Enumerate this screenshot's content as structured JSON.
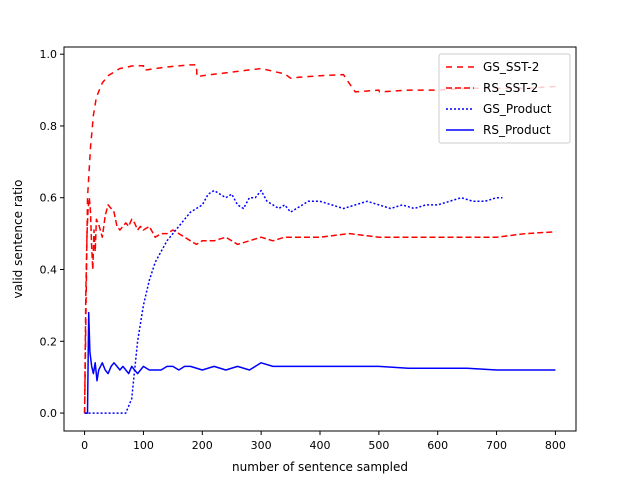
{
  "chart_data": {
    "type": "line",
    "title": "",
    "xlabel": "number of sentence sampled",
    "ylabel": "valid sentence ratio",
    "xlim": [
      -35,
      835
    ],
    "ylim": [
      -0.05,
      1.02
    ],
    "xticks": [
      0,
      100,
      200,
      300,
      400,
      500,
      600,
      700,
      800
    ],
    "xtick_labels": [
      "0",
      "100",
      "200",
      "300",
      "400",
      "500",
      "600",
      "700",
      "800"
    ],
    "yticks": [
      0.0,
      0.2,
      0.4,
      0.6,
      0.8,
      1.0
    ],
    "ytick_labels": [
      "0.0",
      "0.2",
      "0.4",
      "0.6",
      "0.8",
      "1.0"
    ],
    "grid": false,
    "legend_position": "top-right",
    "series": [
      {
        "name": "GS_SST-2",
        "color": "#ff0000",
        "style": "dashdot",
        "x": [
          0,
          5,
          10,
          15,
          20,
          25,
          30,
          40,
          50,
          60,
          70,
          80,
          90,
          100,
          101,
          120,
          150,
          180,
          190,
          191,
          200,
          250,
          300,
          340,
          350,
          360,
          400,
          440,
          450,
          460,
          500,
          501,
          550,
          600,
          650,
          700,
          750,
          800
        ],
        "y": [
          0.0,
          0.6,
          0.74,
          0.83,
          0.88,
          0.9,
          0.92,
          0.94,
          0.95,
          0.96,
          0.963,
          0.967,
          0.968,
          0.968,
          0.955,
          0.96,
          0.966,
          0.97,
          0.97,
          0.937,
          0.94,
          0.95,
          0.96,
          0.945,
          0.933,
          0.935,
          0.94,
          0.943,
          0.918,
          0.895,
          0.9,
          0.895,
          0.9,
          0.9,
          0.905,
          0.905,
          0.905,
          0.91
        ]
      },
      {
        "name": "RS_SST-2",
        "color": "#ff0000",
        "style": "dashed",
        "x": [
          0,
          2,
          4,
          6,
          8,
          10,
          12,
          14,
          16,
          18,
          20,
          25,
          30,
          35,
          40,
          45,
          50,
          55,
          60,
          65,
          70,
          75,
          80,
          85,
          90,
          95,
          100,
          110,
          120,
          130,
          140,
          150,
          160,
          170,
          180,
          190,
          200,
          220,
          240,
          260,
          280,
          300,
          320,
          340,
          360,
          380,
          400,
          450,
          500,
          550,
          600,
          650,
          700,
          750,
          800
        ],
        "y": [
          0.0,
          0.33,
          0.5,
          0.57,
          0.6,
          0.56,
          0.46,
          0.4,
          0.51,
          0.45,
          0.54,
          0.52,
          0.49,
          0.55,
          0.58,
          0.57,
          0.56,
          0.52,
          0.51,
          0.52,
          0.53,
          0.52,
          0.54,
          0.53,
          0.51,
          0.52,
          0.51,
          0.52,
          0.49,
          0.5,
          0.5,
          0.51,
          0.5,
          0.49,
          0.48,
          0.47,
          0.48,
          0.48,
          0.49,
          0.47,
          0.48,
          0.49,
          0.48,
          0.49,
          0.49,
          0.49,
          0.49,
          0.5,
          0.49,
          0.49,
          0.49,
          0.49,
          0.49,
          0.5,
          0.505
        ]
      },
      {
        "name": "GS_Product",
        "color": "#0000ff",
        "style": "dotted",
        "x": [
          0,
          30,
          50,
          70,
          80,
          90,
          100,
          110,
          120,
          140,
          160,
          180,
          200,
          210,
          220,
          230,
          240,
          250,
          260,
          270,
          280,
          290,
          300,
          310,
          320,
          330,
          340,
          350,
          360,
          380,
          400,
          420,
          440,
          460,
          480,
          500,
          520,
          540,
          560,
          580,
          600,
          620,
          640,
          660,
          680,
          700,
          710
        ],
        "y": [
          0.0,
          0.0,
          0.0,
          0.0,
          0.04,
          0.2,
          0.3,
          0.37,
          0.42,
          0.48,
          0.52,
          0.56,
          0.58,
          0.61,
          0.62,
          0.61,
          0.6,
          0.61,
          0.58,
          0.57,
          0.6,
          0.6,
          0.62,
          0.59,
          0.58,
          0.57,
          0.58,
          0.56,
          0.57,
          0.59,
          0.59,
          0.58,
          0.57,
          0.58,
          0.59,
          0.58,
          0.57,
          0.58,
          0.57,
          0.58,
          0.58,
          0.59,
          0.6,
          0.59,
          0.59,
          0.6,
          0.6
        ]
      },
      {
        "name": "RS_Product",
        "color": "#0000ff",
        "style": "solid",
        "x": [
          0,
          5,
          7,
          9,
          12,
          15,
          18,
          21,
          24,
          27,
          30,
          35,
          40,
          45,
          50,
          55,
          60,
          65,
          70,
          75,
          80,
          85,
          90,
          95,
          100,
          110,
          120,
          130,
          140,
          150,
          160,
          170,
          180,
          200,
          220,
          240,
          260,
          280,
          290,
          300,
          320,
          350,
          400,
          450,
          500,
          550,
          600,
          650,
          700,
          750,
          800
        ],
        "y": [
          0.0,
          0.0,
          0.28,
          0.17,
          0.13,
          0.11,
          0.14,
          0.09,
          0.12,
          0.13,
          0.14,
          0.12,
          0.11,
          0.13,
          0.14,
          0.13,
          0.12,
          0.13,
          0.12,
          0.11,
          0.13,
          0.12,
          0.11,
          0.12,
          0.13,
          0.12,
          0.12,
          0.12,
          0.13,
          0.13,
          0.12,
          0.13,
          0.13,
          0.12,
          0.13,
          0.12,
          0.13,
          0.12,
          0.13,
          0.14,
          0.13,
          0.13,
          0.13,
          0.13,
          0.13,
          0.125,
          0.125,
          0.125,
          0.12,
          0.12,
          0.12
        ]
      }
    ]
  }
}
